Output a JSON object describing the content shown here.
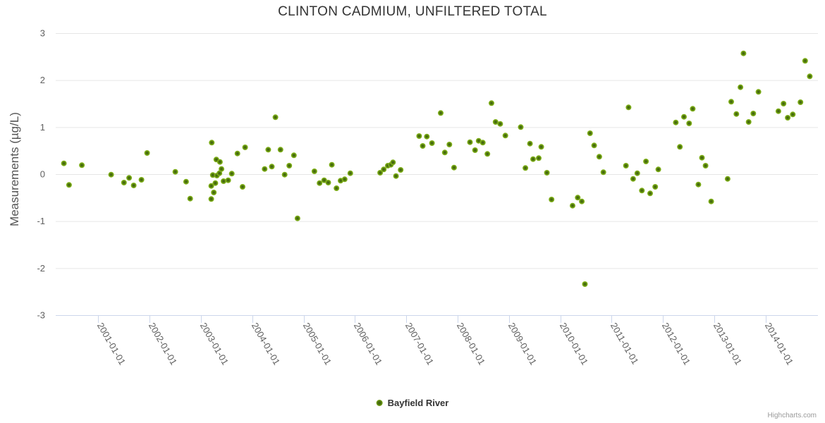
{
  "credits": "Highcharts.com",
  "chart_data": {
    "type": "scatter",
    "title": "CLINTON CADMIUM, UNFILTERED TOTAL",
    "xlabel": "",
    "ylabel": "Measurements (µg/L)",
    "ylim": [
      -3,
      3
    ],
    "yticks": [
      -3,
      -2,
      -1,
      0,
      1,
      2,
      3
    ],
    "xlim_decimal_years": [
      2000.17,
      2015.02
    ],
    "xtick_years": [
      2001,
      2002,
      2003,
      2004,
      2005,
      2006,
      2007,
      2008,
      2009,
      2010,
      2011,
      2012,
      2013,
      2014
    ],
    "xtick_labels": [
      "2001-01-01",
      "2002-01-01",
      "2003-01-01",
      "2004-01-01",
      "2005-01-01",
      "2006-01-01",
      "2007-01-01",
      "2008-01-01",
      "2009-01-01",
      "2010-01-01",
      "2011-01-01",
      "2012-01-01",
      "2013-01-01",
      "2014-01-01"
    ],
    "grid": "horizontal-only",
    "legend_position": "bottom-center",
    "colors": {
      "marker_outer": "#8abc1e",
      "marker_core": "#44690c",
      "grid_line": "#e6e6e6",
      "axis_line": "#ccd6eb",
      "tick_mark": "#ccd6eb",
      "axis_label": "#606060",
      "title": "#333333",
      "credits": "#999999"
    },
    "series": [
      {
        "name": "Bayfield River",
        "marker": "circle",
        "points": [
          [
            2000.33,
            0.23
          ],
          [
            2000.43,
            -0.23
          ],
          [
            2000.68,
            0.19
          ],
          [
            2001.25,
            -0.01
          ],
          [
            2001.5,
            -0.18
          ],
          [
            2001.6,
            -0.08
          ],
          [
            2001.69,
            -0.24
          ],
          [
            2001.84,
            -0.12
          ],
          [
            2001.95,
            0.45
          ],
          [
            2002.5,
            0.05
          ],
          [
            2002.71,
            -0.16
          ],
          [
            2002.79,
            -0.52
          ],
          [
            2003.2,
            -0.25
          ],
          [
            2003.2,
            -0.53
          ],
          [
            2003.21,
            0.67
          ],
          [
            2003.23,
            -0.02
          ],
          [
            2003.25,
            -0.39
          ],
          [
            2003.28,
            -0.19
          ],
          [
            2003.3,
            0.31
          ],
          [
            2003.31,
            -0.03
          ],
          [
            2003.36,
            0.02
          ],
          [
            2003.37,
            0.26
          ],
          [
            2003.4,
            0.11
          ],
          [
            2003.44,
            -0.15
          ],
          [
            2003.53,
            -0.13
          ],
          [
            2003.6,
            0.01
          ],
          [
            2003.71,
            0.44
          ],
          [
            2003.81,
            -0.27
          ],
          [
            2003.86,
            0.57
          ],
          [
            2004.24,
            0.11
          ],
          [
            2004.31,
            0.52
          ],
          [
            2004.38,
            0.16
          ],
          [
            2004.45,
            1.21
          ],
          [
            2004.55,
            0.52
          ],
          [
            2004.63,
            -0.01
          ],
          [
            2004.72,
            0.18
          ],
          [
            2004.81,
            0.4
          ],
          [
            2004.88,
            -0.94
          ],
          [
            2005.21,
            0.06
          ],
          [
            2005.31,
            -0.19
          ],
          [
            2005.4,
            -0.13
          ],
          [
            2005.48,
            -0.18
          ],
          [
            2005.55,
            0.2
          ],
          [
            2005.64,
            -0.3
          ],
          [
            2005.72,
            -0.14
          ],
          [
            2005.8,
            -0.11
          ],
          [
            2005.91,
            0.02
          ],
          [
            2006.49,
            0.03
          ],
          [
            2006.56,
            0.1
          ],
          [
            2006.64,
            0.18
          ],
          [
            2006.7,
            0.2
          ],
          [
            2006.74,
            0.25
          ],
          [
            2006.8,
            -0.04
          ],
          [
            2006.89,
            0.09
          ],
          [
            2007.25,
            0.81
          ],
          [
            2007.32,
            0.6
          ],
          [
            2007.4,
            0.8
          ],
          [
            2007.5,
            0.66
          ],
          [
            2007.67,
            1.3
          ],
          [
            2007.75,
            0.46
          ],
          [
            2007.84,
            0.63
          ],
          [
            2007.93,
            0.14
          ],
          [
            2008.24,
            0.68
          ],
          [
            2008.34,
            0.51
          ],
          [
            2008.41,
            0.71
          ],
          [
            2008.49,
            0.67
          ],
          [
            2008.58,
            0.43
          ],
          [
            2008.66,
            1.51
          ],
          [
            2008.74,
            1.11
          ],
          [
            2008.83,
            1.07
          ],
          [
            2008.93,
            0.82
          ],
          [
            2009.23,
            1.0
          ],
          [
            2009.32,
            0.13
          ],
          [
            2009.41,
            0.65
          ],
          [
            2009.47,
            0.32
          ],
          [
            2009.58,
            0.34
          ],
          [
            2009.63,
            0.58
          ],
          [
            2009.74,
            0.03
          ],
          [
            2009.83,
            -0.54
          ],
          [
            2010.24,
            -0.67
          ],
          [
            2010.34,
            -0.5
          ],
          [
            2010.42,
            -0.58
          ],
          [
            2010.48,
            -2.34
          ],
          [
            2010.58,
            0.87
          ],
          [
            2010.66,
            0.61
          ],
          [
            2010.76,
            0.37
          ],
          [
            2010.84,
            0.04
          ],
          [
            2011.28,
            0.18
          ],
          [
            2011.33,
            1.42
          ],
          [
            2011.42,
            -0.1
          ],
          [
            2011.5,
            0.02
          ],
          [
            2011.59,
            -0.35
          ],
          [
            2011.67,
            0.27
          ],
          [
            2011.75,
            -0.41
          ],
          [
            2011.85,
            -0.27
          ],
          [
            2011.91,
            0.1
          ],
          [
            2012.25,
            1.1
          ],
          [
            2012.33,
            0.58
          ],
          [
            2012.41,
            1.22
          ],
          [
            2012.51,
            1.08
          ],
          [
            2012.58,
            1.39
          ],
          [
            2012.69,
            -0.22
          ],
          [
            2012.76,
            0.35
          ],
          [
            2012.83,
            0.18
          ],
          [
            2012.94,
            -0.58
          ],
          [
            2013.26,
            -0.1
          ],
          [
            2013.33,
            1.54
          ],
          [
            2013.43,
            1.28
          ],
          [
            2013.51,
            1.85
          ],
          [
            2013.57,
            2.57
          ],
          [
            2013.67,
            1.11
          ],
          [
            2013.76,
            1.29
          ],
          [
            2013.86,
            1.75
          ],
          [
            2014.25,
            1.34
          ],
          [
            2014.35,
            1.5
          ],
          [
            2014.43,
            1.2
          ],
          [
            2014.53,
            1.27
          ],
          [
            2014.68,
            1.53
          ],
          [
            2014.77,
            2.41
          ],
          [
            2014.86,
            2.08
          ]
        ]
      }
    ]
  }
}
